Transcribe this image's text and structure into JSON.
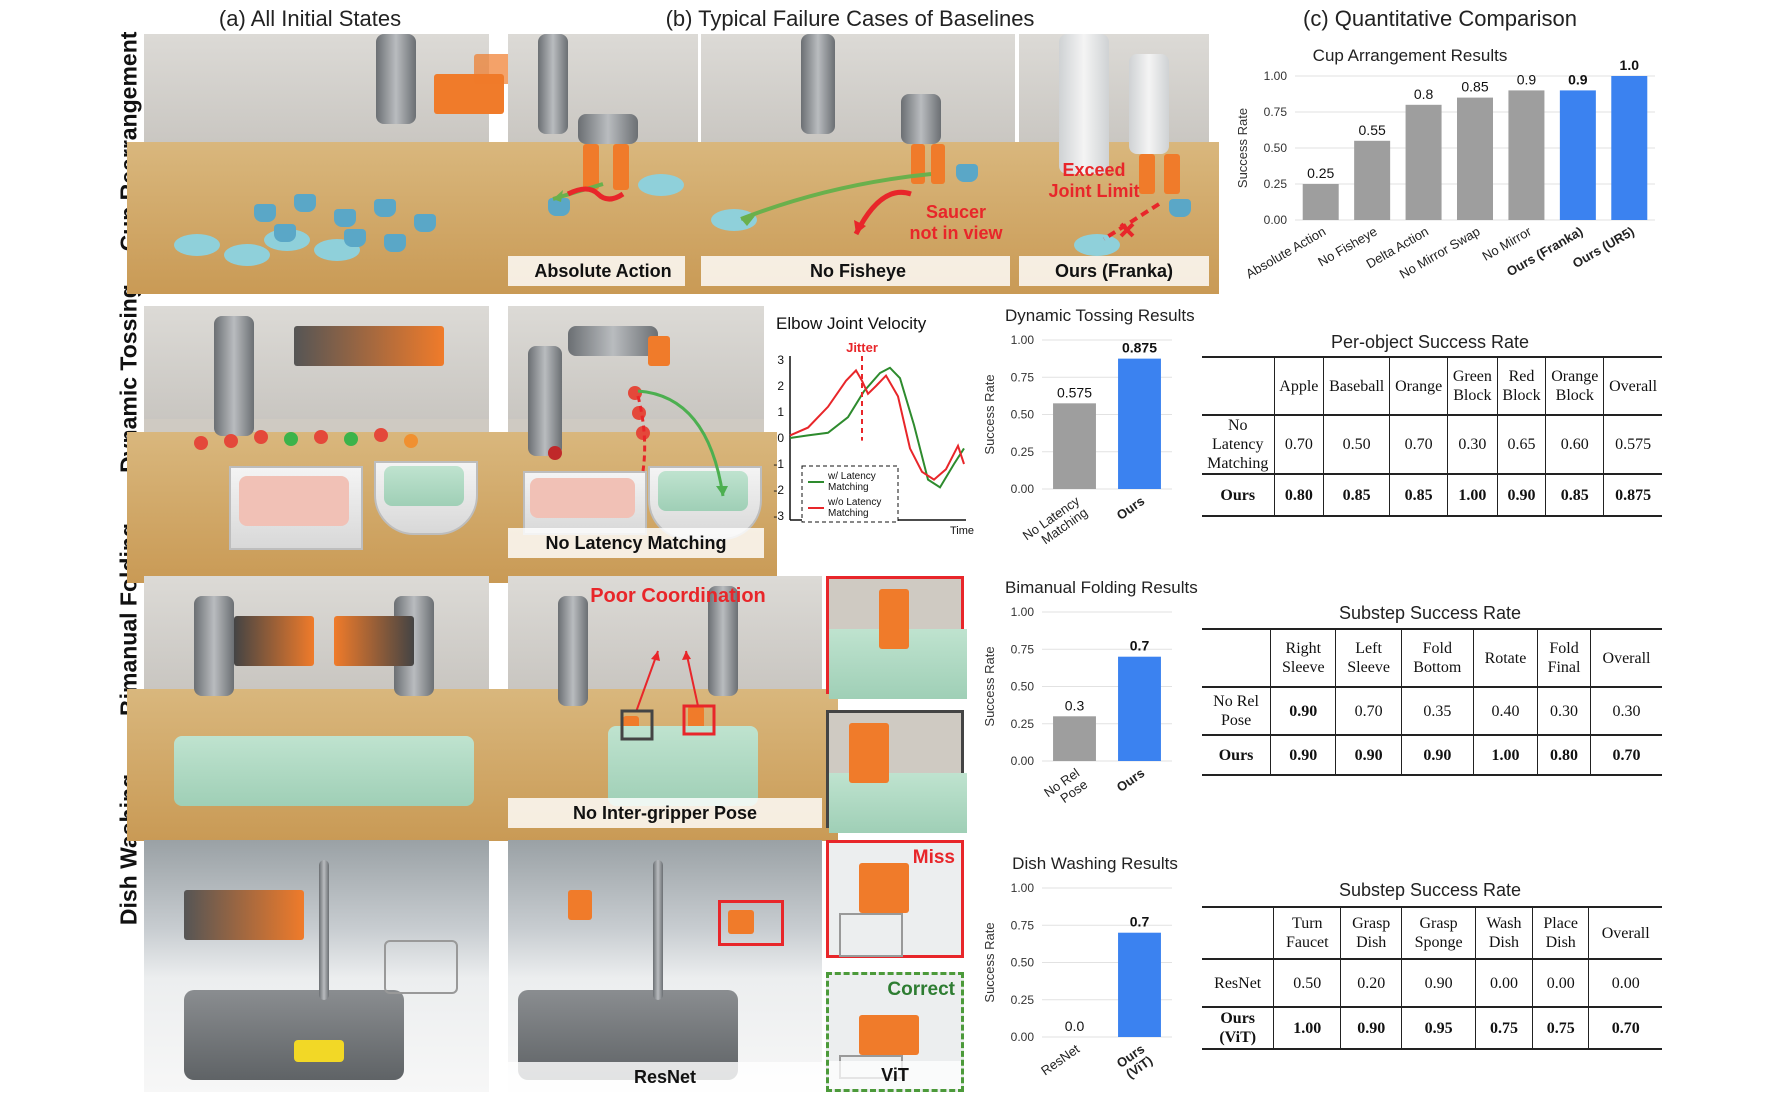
{
  "headers": {
    "a": "(a) All Initial States",
    "b": "(b) Typical Failure Cases of Baselines",
    "c": "(c) Quantitative Comparison"
  },
  "rows": {
    "cup": "Cup Rearrangement",
    "toss": "Dynamic Tossing",
    "fold": "Bimanual Folding",
    "dish": "Dish Washing"
  },
  "panels": {
    "cup_absolute": "Absolute Action",
    "cup_fisheye": "No Fisheye",
    "cup_franka": "Ours (Franka)",
    "cup_saucer_note": "Saucer\nnot in view",
    "cup_joint_note": "Exceed\nJoint Limit",
    "toss_latency": "No Latency Matching",
    "fold_pose": "No Inter-gripper Pose",
    "fold_note": "Poor Coordination",
    "dish_resnet": "ResNet",
    "dish_vit": "ViT",
    "dish_miss": "Miss",
    "dish_correct": "Correct"
  },
  "velocity_plot": {
    "title": "Elbow Joint Velocity",
    "jitter_label": "Jitter",
    "x_label": "Time",
    "y_ticks": [
      3,
      2,
      1,
      0,
      -1,
      -2,
      -3
    ],
    "legend": [
      "w/ Latency\nMatching",
      "w/o Latency\nMatching"
    ],
    "colors": {
      "with": "#2e8b2e",
      "without": "#e8262a"
    }
  },
  "colors": {
    "gray_bar": "#9e9e9e",
    "blue_bar": "#3b82f0",
    "red": "#e8262a",
    "green": "#2e8b2e"
  },
  "chart_data": [
    {
      "type": "bar",
      "title": "Cup Arrangement Results",
      "ylabel": "Success Rate",
      "ylim": [
        0,
        1
      ],
      "y_ticks": [
        "0.00",
        "0.25",
        "0.50",
        "0.75",
        "1.00"
      ],
      "categories": [
        "Absolute Action",
        "No Fisheye",
        "Delta Action",
        "No Mirror Swap",
        "No Mirror",
        "Ours (Franka)",
        "Ours (UR5)"
      ],
      "values": [
        0.25,
        0.55,
        0.8,
        0.85,
        0.9,
        0.9,
        1.0
      ],
      "value_labels": [
        "0.25",
        "0.55",
        "0.8",
        "0.85",
        "0.9",
        "0.9",
        "1.0"
      ],
      "highlight": [
        false,
        false,
        false,
        false,
        false,
        true,
        true
      ]
    },
    {
      "type": "bar",
      "title": "Dynamic Tossing Results",
      "ylabel": "Success Rate",
      "ylim": [
        0,
        1
      ],
      "y_ticks": [
        "0.00",
        "0.25",
        "0.50",
        "0.75",
        "1.00"
      ],
      "categories": [
        "No Latency\nMatching",
        "Ours"
      ],
      "values": [
        0.575,
        0.875
      ],
      "value_labels": [
        "0.575",
        "0.875"
      ],
      "highlight": [
        false,
        true
      ]
    },
    {
      "type": "bar",
      "title": "Bimanual Folding Results",
      "ylabel": "Success Rate",
      "ylim": [
        0,
        1
      ],
      "y_ticks": [
        "0.00",
        "0.25",
        "0.50",
        "0.75",
        "1.00"
      ],
      "categories": [
        "No Rel\nPose",
        "Ours"
      ],
      "values": [
        0.3,
        0.7
      ],
      "value_labels": [
        "0.3",
        "0.7"
      ],
      "highlight": [
        false,
        true
      ]
    },
    {
      "type": "bar",
      "title": "Dish Washing Results",
      "ylabel": "Success Rate",
      "ylim": [
        0,
        1
      ],
      "y_ticks": [
        "0.00",
        "0.25",
        "0.50",
        "0.75",
        "1.00"
      ],
      "categories": [
        "ResNet",
        "Ours\n(ViT)"
      ],
      "values": [
        0.0,
        0.7
      ],
      "value_labels": [
        "0.0",
        "0.7"
      ],
      "highlight": [
        false,
        true
      ]
    },
    {
      "type": "table",
      "title": "Per-object Success Rate",
      "columns": [
        "",
        "Apple",
        "Baseball",
        "Orange",
        "Green\nBlock",
        "Red\nBlock",
        "Orange\nBlock",
        "Overall"
      ],
      "rows": [
        {
          "label": "No\nLatency\nMatching",
          "values": [
            "0.70",
            "0.50",
            "0.70",
            "0.30",
            "0.65",
            "0.60",
            "0.575"
          ],
          "bold": false
        },
        {
          "label": "Ours",
          "values": [
            "0.80",
            "0.85",
            "0.85",
            "1.00",
            "0.90",
            "0.85",
            "0.875"
          ],
          "bold": true
        }
      ]
    },
    {
      "type": "table",
      "title": "Substep Success Rate",
      "columns": [
        "",
        "Right\nSleeve",
        "Left\nSleeve",
        "Fold\nBottom",
        "Rotate",
        "Fold\nFinal",
        "Overall"
      ],
      "rows": [
        {
          "label": "No Rel\nPose",
          "values": [
            "0.90",
            "0.70",
            "0.35",
            "0.40",
            "0.30",
            "0.30"
          ],
          "bold": false,
          "bold_first": true
        },
        {
          "label": "Ours",
          "values": [
            "0.90",
            "0.90",
            "0.90",
            "1.00",
            "0.80",
            "0.70"
          ],
          "bold": true
        }
      ]
    },
    {
      "type": "table",
      "title": "Substep Success Rate",
      "columns": [
        "",
        "Turn\nFaucet",
        "Grasp\nDish",
        "Grasp\nSponge",
        "Wash\nDish",
        "Place\nDish",
        "Overall"
      ],
      "rows": [
        {
          "label": "ResNet",
          "values": [
            "0.50",
            "0.20",
            "0.90",
            "0.00",
            "0.00",
            "0.00"
          ],
          "bold": false
        },
        {
          "label": "Ours\n(ViT)",
          "values": [
            "1.00",
            "0.90",
            "0.95",
            "0.75",
            "0.75",
            "0.70"
          ],
          "bold": true
        }
      ]
    }
  ]
}
